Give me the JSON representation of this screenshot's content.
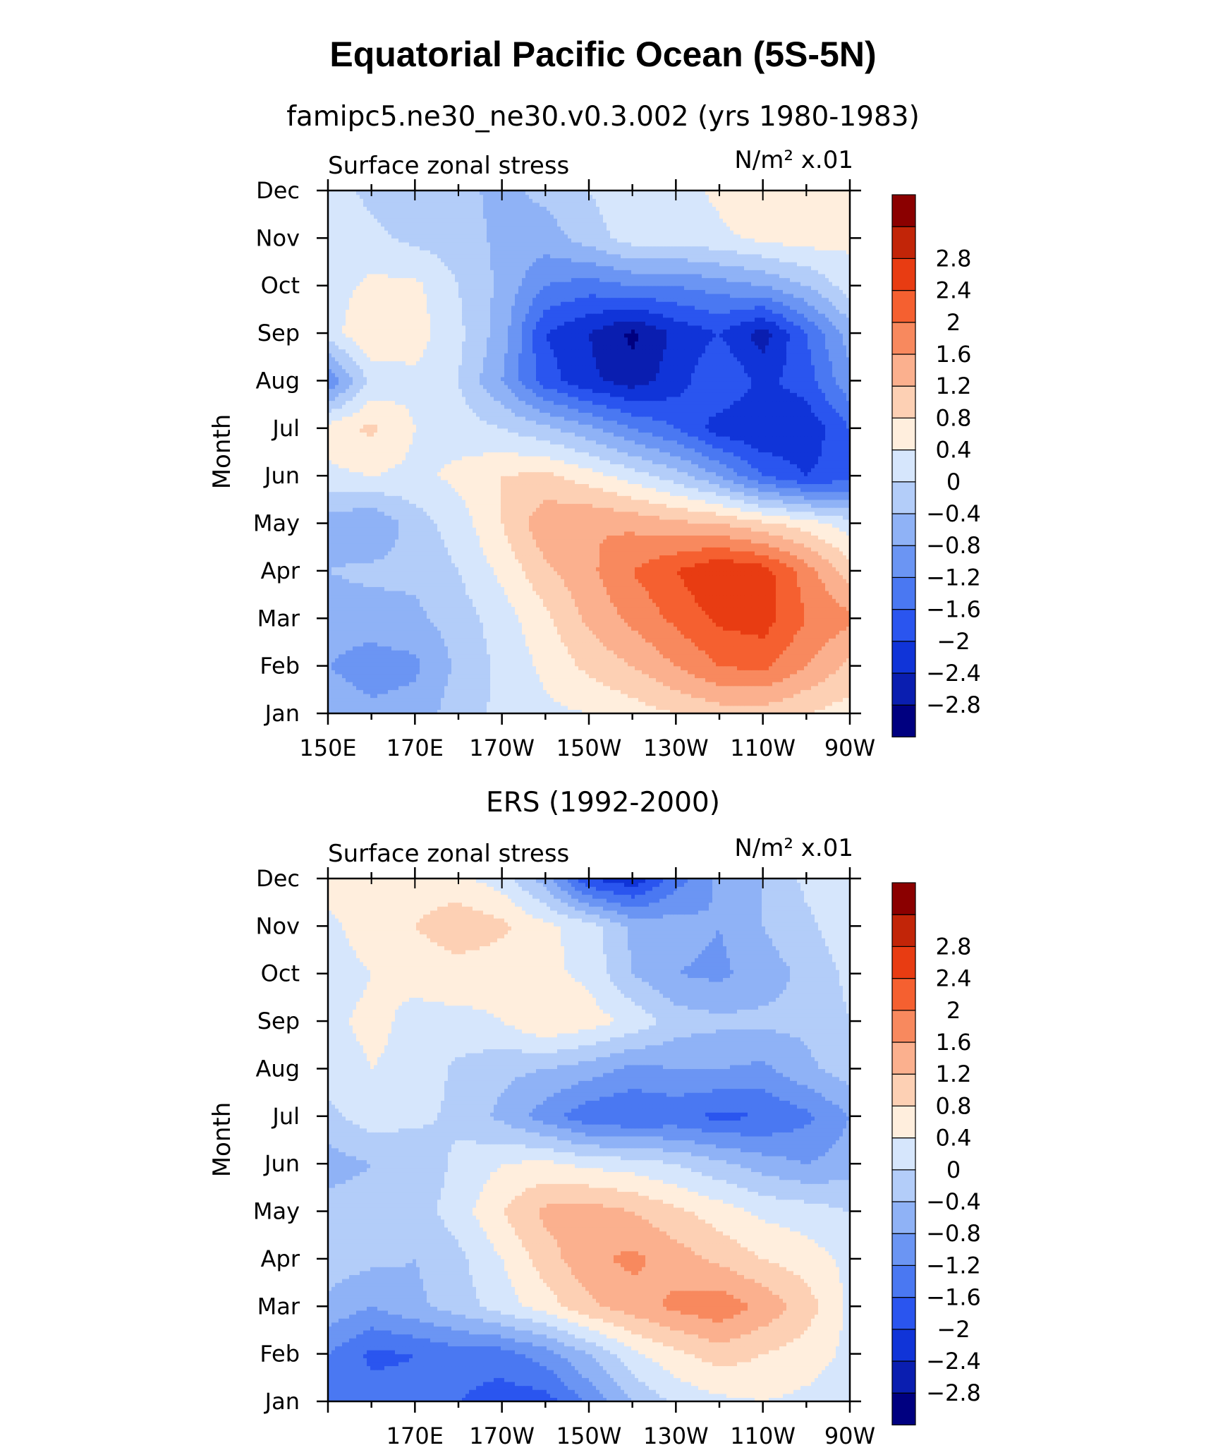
{
  "title": "Equatorial Pacific Ocean (5S-5N)",
  "colorbar": {
    "colors": [
      "#000080",
      "#0a1eb0",
      "#1034d8",
      "#2a55ef",
      "#4a78f2",
      "#6b95f3",
      "#8fb2f6",
      "#b3cdf9",
      "#d6e6fc",
      "#ffeedd",
      "#fdd0b4",
      "#fbb08e",
      "#f8895e",
      "#f56030",
      "#e83c12",
      "#c22508",
      "#8b0000"
    ],
    "labels": [
      "-2.8",
      "-2.4",
      "-2",
      "-1.6",
      "-1.2",
      "-0.8",
      "-0.4",
      "0",
      "0.4",
      "0.8",
      "1.2",
      "1.6",
      "2",
      "2.4",
      "2.8"
    ]
  },
  "panels": [
    {
      "subtitle": "famipc5.ne30_ne30.v0.3.002 (yrs 1980-1983)",
      "left_label": "Surface zonal stress",
      "units": "N/m² x.01",
      "ylabel": "Month",
      "month_labels": [
        "Jan",
        "Feb",
        "Mar",
        "Apr",
        "May",
        "Jun",
        "Jul",
        "Aug",
        "Sep",
        "Oct",
        "Nov",
        "Dec"
      ],
      "lon_labels": [
        "150E",
        "170E",
        "170W",
        "150W",
        "130W",
        "110W",
        "90W"
      ]
    },
    {
      "subtitle": "ERS (1992-2000)",
      "left_label": "Surface zonal stress",
      "units": "N/m² x.01",
      "ylabel": "Month",
      "month_labels": [
        "Jan",
        "Feb",
        "Mar",
        "Apr",
        "May",
        "Jun",
        "Jul",
        "Aug",
        "Sep",
        "Oct",
        "Nov",
        "Dec"
      ],
      "lon_labels": [
        "170E",
        "170W",
        "150W",
        "130W",
        "110W",
        "90W"
      ]
    }
  ],
  "chart_data": [
    {
      "type": "heatmap",
      "title": "famipc5.ne30_ne30.v0.3.002 (yrs 1980-1983)",
      "variable": "Surface zonal stress",
      "units": "N/m² x.01",
      "ylabel": "Month",
      "x": [
        150,
        160,
        170,
        180,
        190,
        200,
        210,
        220,
        230,
        240,
        250,
        260,
        270
      ],
      "x_range": [
        150,
        270
      ],
      "y": [
        "Jan",
        "Feb",
        "Mar",
        "Apr",
        "May",
        "Jun",
        "Jul",
        "Aug",
        "Sep",
        "Oct",
        "Nov",
        "Dec"
      ],
      "levels": [
        -2.8,
        -2.4,
        -2,
        -1.6,
        -1.2,
        -0.8,
        -0.4,
        0,
        0.4,
        0.8,
        1.2,
        1.6,
        2,
        2.4,
        2.8
      ],
      "values": [
        [
          -0.5,
          -0.7,
          -0.6,
          -0.2,
          0.1,
          0.3,
          0.4,
          0.6,
          0.8,
          1.0,
          1.0,
          0.8,
          0.6
        ],
        [
          -0.8,
          -1.0,
          -0.9,
          -0.3,
          0.1,
          0.5,
          0.9,
          1.2,
          1.6,
          2.0,
          2.1,
          1.6,
          1.1
        ],
        [
          -0.6,
          -0.6,
          -0.5,
          -0.2,
          0.2,
          0.7,
          1.3,
          1.7,
          2.1,
          2.5,
          2.6,
          2.0,
          1.7
        ],
        [
          -0.4,
          -0.3,
          -0.3,
          0.0,
          0.5,
          1.1,
          1.5,
          2.0,
          2.4,
          2.8,
          2.6,
          1.8,
          1.0
        ],
        [
          -0.6,
          -0.8,
          -0.2,
          0.2,
          0.8,
          1.5,
          1.6,
          1.5,
          1.3,
          1.2,
          0.9,
          0.6,
          0.2
        ],
        [
          0.3,
          0.4,
          0.3,
          0.5,
          0.8,
          0.9,
          0.6,
          0.2,
          -0.2,
          -0.8,
          -1.6,
          -2.0,
          -1.8
        ],
        [
          0.6,
          0.9,
          0.4,
          0.2,
          0.0,
          -0.3,
          -0.7,
          -1.2,
          -1.6,
          -2.2,
          -2.4,
          -2.3,
          -1.6
        ],
        [
          -1.2,
          0.1,
          0.3,
          0.0,
          -0.8,
          -1.8,
          -2.3,
          -2.6,
          -2.2,
          -1.6,
          -2.1,
          -1.8,
          -0.9
        ],
        [
          0.2,
          0.8,
          0.6,
          0.1,
          -0.6,
          -2.0,
          -2.4,
          -2.9,
          -2.3,
          -2.0,
          -2.6,
          -1.6,
          -0.6
        ],
        [
          0.2,
          0.5,
          0.5,
          0.0,
          -0.5,
          -1.2,
          -1.4,
          -1.2,
          -1.2,
          -1.0,
          -0.8,
          -0.4,
          0.2
        ],
        [
          0.2,
          0.1,
          -0.1,
          -0.2,
          -0.5,
          -0.6,
          -0.2,
          0.2,
          0.2,
          0.3,
          0.5,
          0.6,
          0.5
        ],
        [
          0.2,
          -0.1,
          -0.3,
          -0.3,
          -0.5,
          -0.3,
          0.0,
          0.3,
          0.2,
          0.5,
          0.8,
          0.7,
          0.4
        ]
      ]
    },
    {
      "type": "heatmap",
      "title": "ERS (1992-2000)",
      "variable": "Surface zonal stress",
      "units": "N/m² x.01",
      "ylabel": "Month",
      "x": [
        150,
        160,
        170,
        180,
        190,
        200,
        210,
        220,
        230,
        240,
        250,
        260,
        270
      ],
      "x_range": [
        150,
        270
      ],
      "y": [
        "Jan",
        "Feb",
        "Mar",
        "Apr",
        "May",
        "Jun",
        "Jul",
        "Aug",
        "Sep",
        "Oct",
        "Nov",
        "Dec"
      ],
      "levels": [
        -2.8,
        -2.4,
        -2,
        -1.6,
        -1.2,
        -0.8,
        -0.4,
        0,
        0.4,
        0.8,
        1.2,
        1.6,
        2,
        2.4,
        2.8
      ],
      "values": [
        [
          -1.2,
          -1.4,
          -1.5,
          -1.6,
          -1.8,
          -1.8,
          -1.1,
          -0.4,
          0.1,
          0.3,
          0.4,
          0.3,
          0.2
        ],
        [
          -1.2,
          -1.7,
          -1.6,
          -1.4,
          -1.4,
          -1.0,
          -0.4,
          0.3,
          0.7,
          1.0,
          0.8,
          0.6,
          0.3
        ],
        [
          -0.5,
          -0.8,
          -0.5,
          -0.2,
          0.2,
          0.6,
          1.1,
          1.4,
          1.7,
          1.9,
          1.5,
          1.0,
          0.3
        ],
        [
          -0.2,
          -0.3,
          -0.4,
          -0.1,
          0.4,
          1.0,
          1.5,
          1.7,
          1.4,
          1.1,
          0.8,
          0.6,
          0.3
        ],
        [
          -0.2,
          -0.2,
          -0.2,
          0.2,
          0.8,
          1.3,
          1.4,
          1.2,
          0.9,
          0.6,
          0.3,
          0.2,
          0.0
        ],
        [
          -0.6,
          -0.4,
          -0.3,
          0.1,
          0.4,
          0.5,
          0.3,
          0.2,
          0.0,
          -0.3,
          -0.6,
          -0.8,
          -0.6
        ],
        [
          -0.1,
          0.2,
          0.1,
          -0.1,
          -0.5,
          -1.0,
          -1.5,
          -1.6,
          -1.5,
          -1.7,
          -1.6,
          -1.3,
          -0.8
        ],
        [
          0.2,
          0.4,
          0.3,
          -0.1,
          -0.3,
          -0.4,
          -0.6,
          -0.9,
          -0.8,
          -0.8,
          -0.9,
          -0.5,
          -0.2
        ],
        [
          0.3,
          0.5,
          0.3,
          0.3,
          0.4,
          0.8,
          0.6,
          0.3,
          -0.2,
          -0.3,
          -0.3,
          -0.3,
          0.0
        ],
        [
          0.2,
          0.4,
          0.5,
          0.6,
          0.5,
          0.5,
          0.3,
          -0.4,
          -0.8,
          -0.9,
          -0.6,
          -0.3,
          0.1
        ],
        [
          0.3,
          0.6,
          0.8,
          1.1,
          0.9,
          0.5,
          0.2,
          -0.5,
          -0.6,
          -0.8,
          -0.4,
          -0.1,
          0.3
        ],
        [
          0.6,
          0.7,
          0.6,
          0.5,
          0.2,
          -0.6,
          -2.0,
          -2.3,
          -1.4,
          -0.7,
          -0.4,
          0.1,
          0.4
        ]
      ]
    }
  ]
}
